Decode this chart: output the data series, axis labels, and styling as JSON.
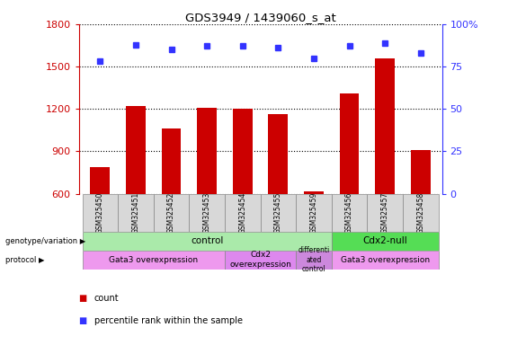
{
  "title": "GDS3949 / 1439060_s_at",
  "samples": [
    "GSM325450",
    "GSM325451",
    "GSM325452",
    "GSM325453",
    "GSM325454",
    "GSM325455",
    "GSM325459",
    "GSM325456",
    "GSM325457",
    "GSM325458"
  ],
  "counts": [
    790,
    1220,
    1060,
    1210,
    1200,
    1165,
    615,
    1310,
    1560,
    910
  ],
  "percentiles": [
    78,
    88,
    85,
    87,
    87,
    86,
    80,
    87,
    89,
    83
  ],
  "ylim_left": [
    600,
    1800
  ],
  "ylim_right": [
    0,
    100
  ],
  "yticks_left": [
    600,
    900,
    1200,
    1500,
    1800
  ],
  "yticks_right": [
    0,
    25,
    50,
    75,
    100
  ],
  "bar_color": "#cc0000",
  "dot_color": "#3333ff",
  "genotype_colors": {
    "control": "#aaeaaa",
    "Cdx2-null": "#55dd55"
  },
  "genotype_groups": [
    {
      "label": "control",
      "start": 0,
      "end": 7
    },
    {
      "label": "Cdx2-null",
      "start": 7,
      "end": 10
    }
  ],
  "protocol_groups": [
    {
      "label": "Gata3 overexpression",
      "start": 0,
      "end": 4,
      "color": "#ee99ee"
    },
    {
      "label": "Cdx2\noverexpression",
      "start": 4,
      "end": 6,
      "color": "#dd88ee"
    },
    {
      "label": "differenti\nated\ncontrol",
      "start": 6,
      "end": 7,
      "color": "#cc88dd"
    },
    {
      "label": "Gata3 overexpression",
      "start": 7,
      "end": 10,
      "color": "#ee99ee"
    }
  ],
  "legend_items": [
    {
      "color": "#cc0000",
      "label": "count"
    },
    {
      "color": "#3333ff",
      "label": "percentile rank within the sample"
    }
  ]
}
